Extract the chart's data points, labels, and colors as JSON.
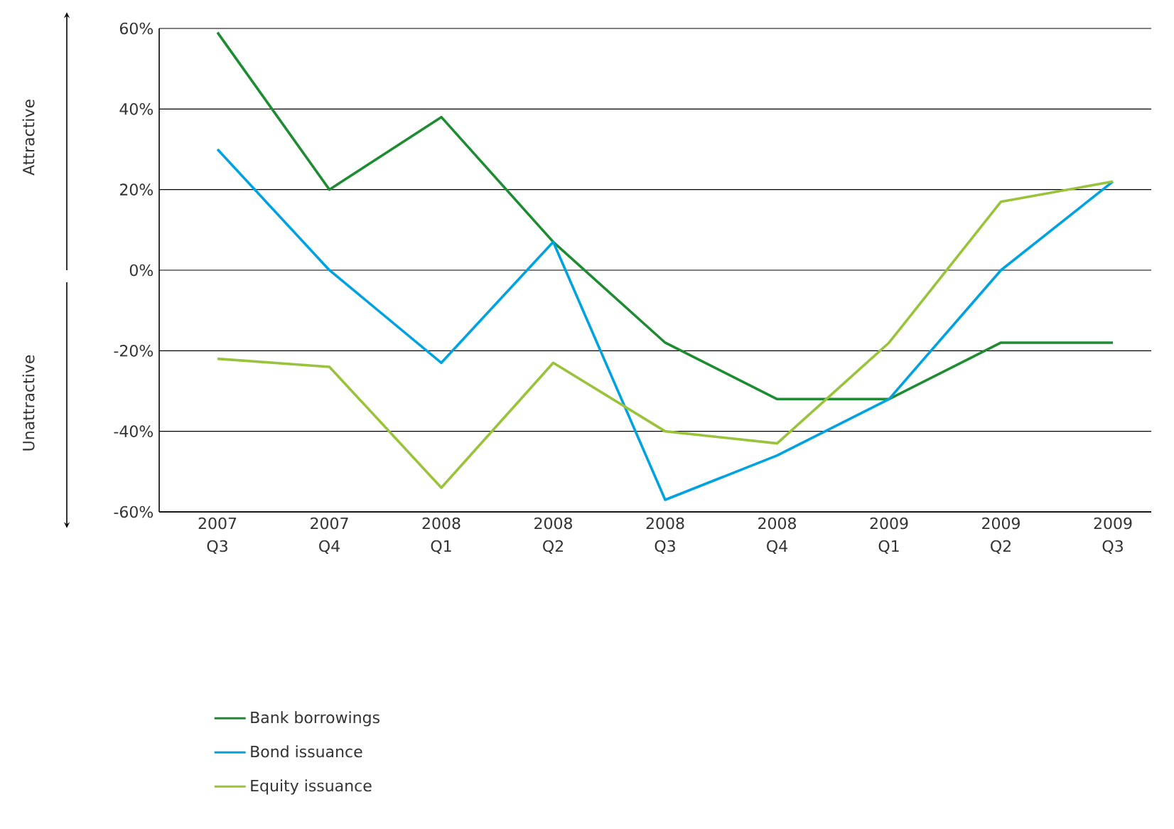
{
  "chart_data": {
    "type": "line",
    "categories": [
      "2007 Q3",
      "2007 Q4",
      "2008 Q1",
      "2008 Q2",
      "2008 Q3",
      "2008 Q4",
      "2009 Q1",
      "2009 Q2",
      "2009 Q3"
    ],
    "series": [
      {
        "name": "Bank borrowings",
        "color": "#1e8c32",
        "values": [
          59,
          20,
          38,
          7,
          -18,
          -32,
          -32,
          -18,
          -18
        ]
      },
      {
        "name": "Bond issuance",
        "color": "#00a3e0",
        "values": [
          30,
          0,
          -23,
          7,
          -57,
          -46,
          -32,
          0,
          22
        ]
      },
      {
        "name": "Equity issuance",
        "color": "#9ac33c",
        "values": [
          -22,
          -24,
          -54,
          -23,
          -40,
          -43,
          -18,
          17,
          22
        ]
      }
    ],
    "ylim": [
      -60,
      60
    ],
    "yticks": [
      {
        "value": -60,
        "label": "-60%"
      },
      {
        "value": -40,
        "label": "-40%"
      },
      {
        "value": -20,
        "label": "-20%"
      },
      {
        "value": 0,
        "label": "0%"
      },
      {
        "value": 20,
        "label": "20%"
      },
      {
        "value": 40,
        "label": "40%"
      },
      {
        "value": 60,
        "label": "60%"
      }
    ],
    "grid": "y",
    "legend": "bottom left",
    "marker": "none",
    "line_style": "solid",
    "annotations": [
      "Attractive",
      "Unattractive"
    ]
  }
}
